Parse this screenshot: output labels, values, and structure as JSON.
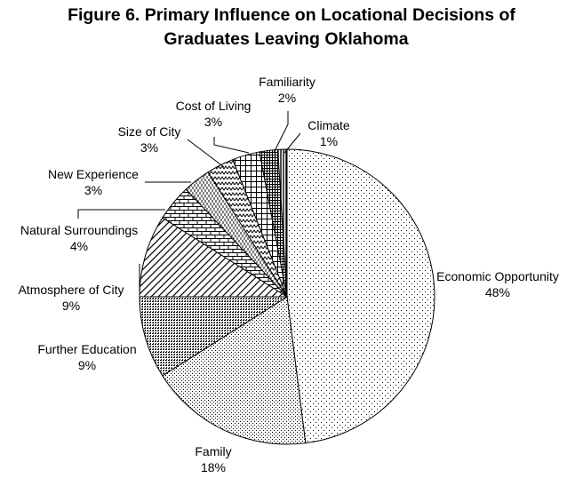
{
  "chart_data": {
    "type": "pie",
    "title_lines": [
      "Figure 6. Primary Influence on Locational Decisions of",
      "Graduates Leaving Oklahoma"
    ],
    "slices": [
      {
        "category": "Economic Opportunity",
        "percent_label": "48%",
        "value": 48
      },
      {
        "category": "Family",
        "percent_label": "18%",
        "value": 18
      },
      {
        "category": "Further Education",
        "percent_label": "9%",
        "value": 9
      },
      {
        "category": "Atmosphere of City",
        "percent_label": "9%",
        "value": 9
      },
      {
        "category": "Natural Surroundings",
        "percent_label": "4%",
        "value": 4
      },
      {
        "category": "New Experience",
        "percent_label": "3%",
        "value": 3
      },
      {
        "category": "Size of City",
        "percent_label": "3%",
        "value": 3
      },
      {
        "category": "Cost of Living",
        "percent_label": "3%",
        "value": 3
      },
      {
        "category": "Familiarity",
        "percent_label": "2%",
        "value": 2
      },
      {
        "category": "Climate",
        "percent_label": "1%",
        "value": 1
      }
    ],
    "start_angle_deg": 0,
    "direction": "clockwise",
    "fill_style": "black-and-white hatch patterns",
    "colors": {
      "stroke": "#000000",
      "background": "#ffffff"
    }
  }
}
